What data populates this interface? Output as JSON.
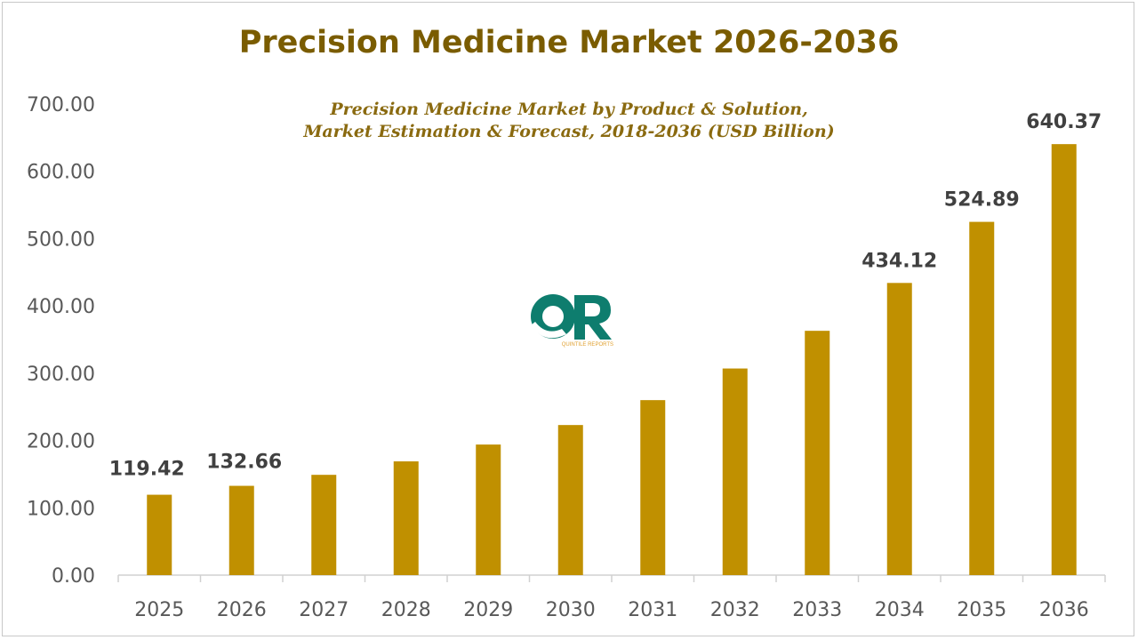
{
  "chart_data": {
    "type": "bar",
    "title": "Precision Medicine Market 2026-2036",
    "subtitle": "Precision Medicine Market by Product & Solution, Market Estimation & Forecast, 2018-2036 (USD Billion)",
    "xlabel": "",
    "ylabel": "",
    "categories": [
      "2025",
      "2026",
      "2027",
      "2028",
      "2029",
      "2030",
      "2031",
      "2032",
      "2033",
      "2034",
      "2035",
      "2036"
    ],
    "values": [
      119.42,
      132.66,
      149,
      169,
      194,
      223,
      260,
      307,
      363,
      434.12,
      524.89,
      640.37
    ],
    "data_labels": {
      "0": "119.42",
      "1": "132.66",
      "9": "434.12",
      "10": "524.89",
      "11": "640.37"
    },
    "ylim": [
      0,
      700
    ],
    "yticks": [
      "0.00",
      "100.00",
      "200.00",
      "300.00",
      "400.00",
      "500.00",
      "600.00",
      "700.00"
    ],
    "grid": false,
    "legend": "none",
    "bar_color": "#C09000"
  },
  "logo": {
    "letters": "QR",
    "text": "QUINTILE REPORTS",
    "color": "#0e7d6e",
    "text_color": "#e0a030"
  }
}
